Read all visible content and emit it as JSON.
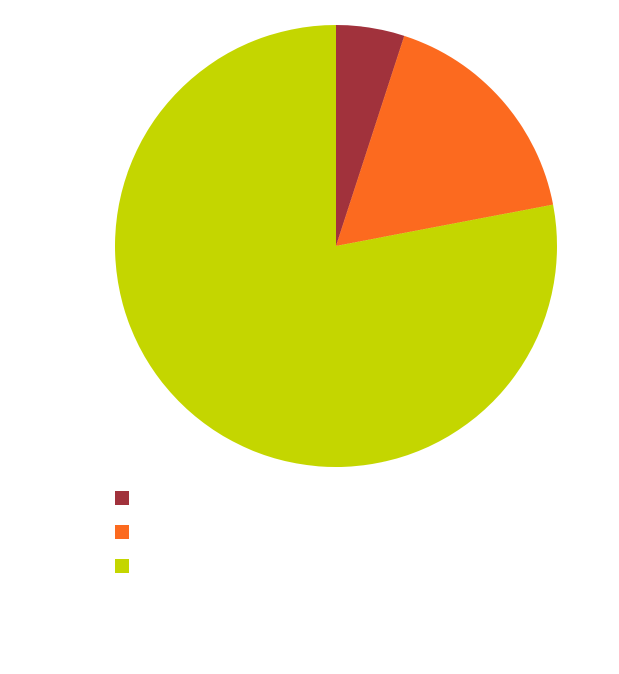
{
  "chart_data": {
    "type": "pie",
    "categories": [
      null,
      null,
      null
    ],
    "values": [
      5,
      17,
      78
    ],
    "colors": [
      "#a1323c",
      "#fc6a1f",
      "#c4d600"
    ],
    "legend": "bottom-left"
  }
}
